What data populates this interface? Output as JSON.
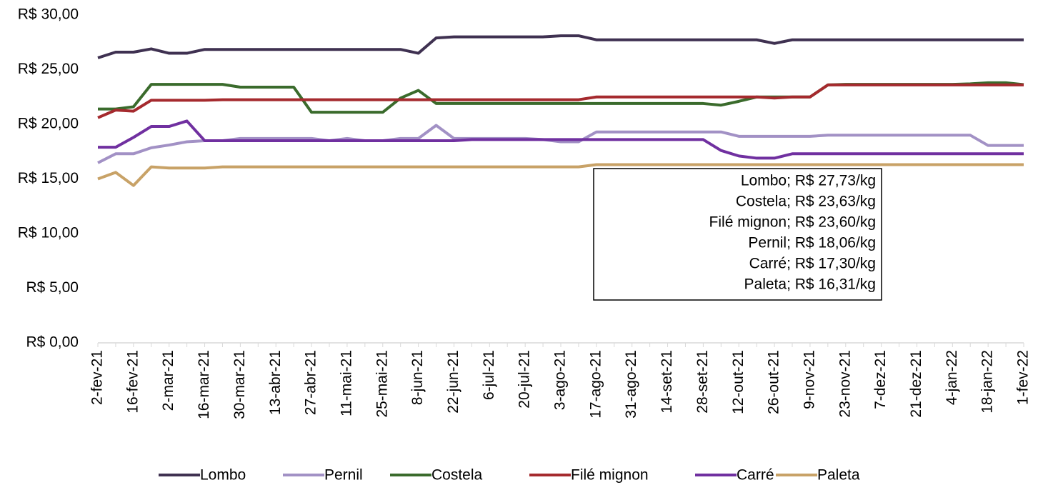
{
  "chart_data": {
    "type": "line",
    "categories": [
      "2-fev-21",
      null,
      "16-fev-21",
      null,
      "2-mar-21",
      null,
      "16-mar-21",
      null,
      "30-mar-21",
      null,
      "13-abr-21",
      null,
      "27-abr-21",
      null,
      "11-mai-21",
      null,
      "25-mai-21",
      null,
      "8-jun-21",
      null,
      "22-jun-21",
      null,
      "6-jul-21",
      null,
      "20-jul-21",
      null,
      "3-ago-21",
      null,
      "17-ago-21",
      null,
      "31-ago-21",
      null,
      "14-set-21",
      null,
      "28-set-21",
      null,
      "12-out-21",
      null,
      "26-out-21",
      null,
      "9-nov-21",
      null,
      "23-nov-21",
      null,
      "7-dez-21",
      null,
      "21-dez-21",
      null,
      "4-jan-22",
      null,
      "18-jan-22",
      null,
      "1-fev-22"
    ],
    "series": [
      {
        "name": "Lombo",
        "color": "#3f3151",
        "values": [
          26.08,
          26.6,
          26.6,
          26.9,
          26.5,
          26.5,
          26.85,
          26.85,
          26.85,
          26.85,
          26.85,
          26.85,
          26.85,
          26.85,
          26.85,
          26.85,
          26.85,
          26.85,
          26.5,
          27.9,
          28.0,
          28.0,
          28.0,
          28.0,
          28.0,
          28.0,
          28.1,
          28.1,
          27.73,
          27.73,
          27.73,
          27.73,
          27.73,
          27.73,
          27.73,
          27.73,
          27.73,
          27.73,
          27.4,
          27.73,
          27.73,
          27.73,
          27.73,
          27.73,
          27.73,
          27.73,
          27.73,
          27.73,
          27.73,
          27.73,
          27.73,
          27.73,
          27.73
        ]
      },
      {
        "name": "Pernil",
        "color": "#a291c5",
        "values": [
          16.47,
          17.3,
          17.3,
          17.85,
          18.1,
          18.4,
          18.5,
          18.5,
          18.7,
          18.7,
          18.7,
          18.7,
          18.7,
          18.5,
          18.7,
          18.5,
          18.5,
          18.7,
          18.7,
          19.9,
          18.7,
          18.7,
          18.7,
          18.7,
          18.7,
          18.6,
          18.4,
          18.4,
          19.3,
          19.3,
          19.3,
          19.3,
          19.3,
          19.3,
          19.3,
          19.3,
          18.9,
          18.9,
          18.9,
          18.9,
          18.9,
          19.0,
          19.0,
          19.0,
          19.0,
          19.0,
          19.0,
          19.0,
          19.0,
          19.0,
          18.06,
          18.06,
          18.06
        ]
      },
      {
        "name": "Costela",
        "color": "#3a6b2c",
        "values": [
          21.4,
          21.4,
          21.6,
          23.65,
          23.65,
          23.65,
          23.65,
          23.65,
          23.4,
          23.4,
          23.4,
          23.4,
          21.1,
          21.1,
          21.1,
          21.1,
          21.1,
          22.4,
          23.1,
          21.9,
          21.9,
          21.9,
          21.9,
          21.9,
          21.9,
          21.9,
          21.9,
          21.9,
          21.9,
          21.9,
          21.9,
          21.9,
          21.9,
          21.9,
          21.9,
          21.75,
          22.1,
          22.5,
          22.5,
          22.5,
          22.5,
          23.6,
          23.65,
          23.65,
          23.65,
          23.65,
          23.65,
          23.65,
          23.65,
          23.7,
          23.8,
          23.8,
          23.63
        ]
      },
      {
        "name": "Filé mignon",
        "color": "#a52a2e",
        "values": [
          20.6,
          21.3,
          21.2,
          22.2,
          22.2,
          22.2,
          22.2,
          22.25,
          22.25,
          22.25,
          22.25,
          22.25,
          22.25,
          22.25,
          22.25,
          22.25,
          22.25,
          22.25,
          22.25,
          22.25,
          22.25,
          22.25,
          22.25,
          22.25,
          22.25,
          22.25,
          22.25,
          22.25,
          22.5,
          22.5,
          22.5,
          22.5,
          22.5,
          22.5,
          22.5,
          22.5,
          22.5,
          22.5,
          22.4,
          22.5,
          22.5,
          23.6,
          23.6,
          23.6,
          23.6,
          23.6,
          23.6,
          23.6,
          23.6,
          23.6,
          23.6,
          23.6,
          23.6
        ]
      },
      {
        "name": "Carré",
        "color": "#7030a0",
        "values": [
          17.9,
          17.9,
          18.8,
          19.8,
          19.8,
          20.3,
          18.5,
          18.5,
          18.5,
          18.5,
          18.5,
          18.5,
          18.5,
          18.5,
          18.5,
          18.5,
          18.5,
          18.5,
          18.5,
          18.5,
          18.5,
          18.6,
          18.6,
          18.6,
          18.6,
          18.6,
          18.6,
          18.6,
          18.6,
          18.6,
          18.6,
          18.6,
          18.6,
          18.6,
          18.6,
          17.6,
          17.1,
          16.9,
          16.9,
          17.3,
          17.3,
          17.3,
          17.3,
          17.3,
          17.3,
          17.3,
          17.3,
          17.3,
          17.3,
          17.3,
          17.3,
          17.3,
          17.3
        ]
      },
      {
        "name": "Paleta",
        "color": "#c8a267",
        "values": [
          15.0,
          15.6,
          14.4,
          16.1,
          16.0,
          16.0,
          16.0,
          16.1,
          16.1,
          16.1,
          16.1,
          16.1,
          16.1,
          16.1,
          16.1,
          16.1,
          16.1,
          16.1,
          16.1,
          16.1,
          16.1,
          16.1,
          16.1,
          16.1,
          16.1,
          16.1,
          16.1,
          16.1,
          16.31,
          16.31,
          16.31,
          16.31,
          16.31,
          16.31,
          16.31,
          16.31,
          16.31,
          16.31,
          16.31,
          16.31,
          16.31,
          16.31,
          16.31,
          16.31,
          16.31,
          16.31,
          16.31,
          16.31,
          16.31,
          16.31,
          16.31,
          16.31,
          16.31
        ]
      }
    ],
    "ylim": [
      0,
      30
    ],
    "yticks": [
      {
        "value": 0,
        "label": "R$ 0,00"
      },
      {
        "value": 5,
        "label": "R$ 5,00"
      },
      {
        "value": 10,
        "label": "R$ 10,00"
      },
      {
        "value": 15,
        "label": "R$ 15,00"
      },
      {
        "value": 20,
        "label": "R$ 20,00"
      },
      {
        "value": 25,
        "label": "R$ 25,00"
      },
      {
        "value": 30,
        "label": "R$ 30,00"
      }
    ],
    "annotations": [
      "Lombo; R$ 27,73/kg",
      "Costela; R$ 23,63/kg",
      "Filé mignon; R$ 23,60/kg",
      "Pernil; R$ 18,06/kg",
      "Carré; R$ 17,30/kg",
      "Paleta; R$ 16,31/kg"
    ],
    "legend": "bottom"
  }
}
